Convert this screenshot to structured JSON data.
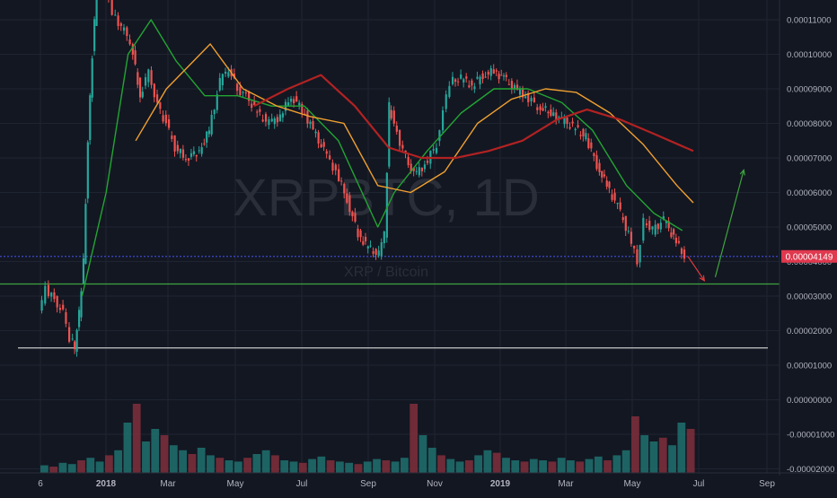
{
  "chart_data": {
    "type": "candlestick",
    "watermark": {
      "symbol": "XRPBTC, 1D",
      "subtitle": "XRP / Bitcoin"
    },
    "price_axis": {
      "labels": [
        "0.00011000",
        "0.00010000",
        "0.00009000",
        "0.00008000",
        "0.00007000",
        "0.00006000",
        "0.00005000",
        "0.00004000",
        "0.00003000",
        "0.00002000",
        "0.00001000",
        "0.00000000",
        "-0.00001000",
        "-0.00002000"
      ],
      "range": [
        -2e-05,
        0.000115
      ],
      "last_price_label": "0.00004149",
      "last_price": 4.149e-05
    },
    "time_axis": {
      "labels": [
        "6",
        "2018",
        "Mar",
        "May",
        "Jul",
        "Sep",
        "Nov",
        "2019",
        "Mar",
        "May",
        "Jul",
        "Sep"
      ]
    },
    "horizontal_lines": [
      {
        "name": "blue-support",
        "value": 4.15e-05,
        "color": "#3f48cc",
        "style": "dotted"
      },
      {
        "name": "green-support",
        "value": 3.35e-05,
        "color": "#3ea33e",
        "style": "solid"
      },
      {
        "name": "white-support",
        "value": 1.5e-05,
        "color": "#c8c8c8",
        "style": "solid"
      }
    ],
    "price_series": [
      [
        "2017-11-06",
        2.5e-05
      ],
      [
        "2017-11-12",
        3.2e-05
      ],
      [
        "2017-11-20",
        2.9e-05
      ],
      [
        "2017-11-28",
        2.5e-05
      ],
      [
        "2017-12-04",
        1.8e-05
      ],
      [
        "2017-12-08",
        1.5e-05
      ],
      [
        "2017-12-12",
        2.5e-05
      ],
      [
        "2017-12-16",
        4e-05
      ],
      [
        "2017-12-20",
        7.5e-05
      ],
      [
        "2017-12-24",
        0.0001
      ],
      [
        "2017-12-28",
        0.000118
      ],
      [
        "2018-01-02",
        0.00013
      ],
      [
        "2018-01-06",
        0.000122
      ],
      [
        "2018-01-12",
        0.000112
      ],
      [
        "2018-01-20",
        0.000108
      ],
      [
        "2018-01-28",
        0.000104
      ],
      [
        "2018-02-06",
        8.8e-05
      ],
      [
        "2018-02-14",
        9.5e-05
      ],
      [
        "2018-02-22",
        8.5e-05
      ],
      [
        "2018-03-02",
        8e-05
      ],
      [
        "2018-03-10",
        7.3e-05
      ],
      [
        "2018-03-20",
        7e-05
      ],
      [
        "2018-04-01",
        7.2e-05
      ],
      [
        "2018-04-10",
        7.8e-05
      ],
      [
        "2018-04-20",
        9.2e-05
      ],
      [
        "2018-04-28",
        9.6e-05
      ],
      [
        "2018-05-06",
        9e-05
      ],
      [
        "2018-05-14",
        8.8e-05
      ],
      [
        "2018-05-24",
        8.3e-05
      ],
      [
        "2018-06-04",
        8e-05
      ],
      [
        "2018-06-14",
        8.2e-05
      ],
      [
        "2018-06-24",
        8.8e-05
      ],
      [
        "2018-07-04",
        8.4e-05
      ],
      [
        "2018-07-14",
        7.8e-05
      ],
      [
        "2018-07-24",
        7.2e-05
      ],
      [
        "2018-08-04",
        6.6e-05
      ],
      [
        "2018-08-14",
        5.8e-05
      ],
      [
        "2018-08-24",
        4.8e-05
      ],
      [
        "2018-09-02",
        4.4e-05
      ],
      [
        "2018-09-12",
        4.2e-05
      ],
      [
        "2018-09-17",
        4.8e-05
      ],
      [
        "2018-09-21",
        8.5e-05
      ],
      [
        "2018-09-26",
        8e-05
      ],
      [
        "2018-10-04",
        7.2e-05
      ],
      [
        "2018-10-14",
        6.5e-05
      ],
      [
        "2018-10-24",
        6.8e-05
      ],
      [
        "2018-11-04",
        7.4e-05
      ],
      [
        "2018-11-10",
        8.4e-05
      ],
      [
        "2018-11-16",
        9.2e-05
      ],
      [
        "2018-11-26",
        9.3e-05
      ],
      [
        "2018-12-06",
        9.1e-05
      ],
      [
        "2018-12-16",
        9.4e-05
      ],
      [
        "2018-12-26",
        9.5e-05
      ],
      [
        "2019-01-04",
        9.3e-05
      ],
      [
        "2019-01-14",
        9e-05
      ],
      [
        "2019-01-24",
        8.8e-05
      ],
      [
        "2019-02-04",
        8.5e-05
      ],
      [
        "2019-02-16",
        8.3e-05
      ],
      [
        "2019-02-26",
        8.1e-05
      ],
      [
        "2019-03-08",
        7.9e-05
      ],
      [
        "2019-03-20",
        7.6e-05
      ],
      [
        "2019-03-30",
        6.8e-05
      ],
      [
        "2019-04-08",
        6.2e-05
      ],
      [
        "2019-04-18",
        5.6e-05
      ],
      [
        "2019-04-28",
        4.8e-05
      ],
      [
        "2019-05-06",
        4e-05
      ],
      [
        "2019-05-12",
        5.2e-05
      ],
      [
        "2019-05-20",
        4.9e-05
      ],
      [
        "2019-05-30",
        5.2e-05
      ],
      [
        "2019-06-08",
        4.7e-05
      ],
      [
        "2019-06-18",
        4.15e-05
      ]
    ],
    "moving_averages": [
      {
        "color": "#22a533",
        "points": [
          [
            "2017-12-14",
            3e-05
          ],
          [
            "2018-01-05",
            6e-05
          ],
          [
            "2018-01-25",
            0.0001
          ],
          [
            "2018-02-15",
            0.00011
          ],
          [
            "2018-03-10",
            9.8e-05
          ],
          [
            "2018-04-05",
            8.8e-05
          ],
          [
            "2018-05-05",
            8.8e-05
          ],
          [
            "2018-06-05",
            8.5e-05
          ],
          [
            "2018-07-05",
            8.5e-05
          ],
          [
            "2018-08-05",
            7.5e-05
          ],
          [
            "2018-09-10",
            5e-05
          ],
          [
            "2018-09-25",
            6e-05
          ],
          [
            "2018-10-25",
            7.2e-05
          ],
          [
            "2018-11-25",
            8.3e-05
          ],
          [
            "2018-12-25",
            9e-05
          ],
          [
            "2019-01-25",
            9e-05
          ],
          [
            "2019-02-25",
            8.6e-05
          ],
          [
            "2019-03-25",
            7.8e-05
          ],
          [
            "2019-04-25",
            6.2e-05
          ],
          [
            "2019-05-20",
            5.4e-05
          ],
          [
            "2019-06-15",
            4.9e-05
          ]
        ]
      },
      {
        "color": "#f0a030",
        "points": [
          [
            "2018-02-01",
            7.5e-05
          ],
          [
            "2018-03-01",
            9e-05
          ],
          [
            "2018-04-10",
            0.000103
          ],
          [
            "2018-05-10",
            9e-05
          ],
          [
            "2018-06-10",
            8.5e-05
          ],
          [
            "2018-07-10",
            8.2e-05
          ],
          [
            "2018-08-10",
            8e-05
          ],
          [
            "2018-09-10",
            6.2e-05
          ],
          [
            "2018-10-10",
            6e-05
          ],
          [
            "2018-11-10",
            6.6e-05
          ],
          [
            "2018-12-10",
            8e-05
          ],
          [
            "2019-01-10",
            8.7e-05
          ],
          [
            "2019-02-10",
            9e-05
          ],
          [
            "2019-03-10",
            8.9e-05
          ],
          [
            "2019-04-10",
            8.3e-05
          ],
          [
            "2019-05-10",
            7.4e-05
          ],
          [
            "2019-06-10",
            6.2e-05
          ],
          [
            "2019-06-25",
            5.7e-05
          ]
        ]
      },
      {
        "color": "#b22222",
        "points": [
          [
            "2018-05-20",
            8.5e-05
          ],
          [
            "2018-06-20",
            9e-05
          ],
          [
            "2018-07-20",
            9.4e-05
          ],
          [
            "2018-08-20",
            8.5e-05
          ],
          [
            "2018-09-20",
            7.3e-05
          ],
          [
            "2018-10-20",
            7e-05
          ],
          [
            "2018-11-20",
            7e-05
          ],
          [
            "2018-12-20",
            7.2e-05
          ],
          [
            "2019-01-20",
            7.5e-05
          ],
          [
            "2019-02-20",
            8.1e-05
          ],
          [
            "2019-03-20",
            8.4e-05
          ],
          [
            "2019-04-20",
            8.1e-05
          ],
          [
            "2019-05-20",
            7.7e-05
          ],
          [
            "2019-06-25",
            7.2e-05
          ]
        ]
      }
    ],
    "projection_arrows": [
      {
        "color": "#e03c3c",
        "from": [
          "2019-06-20",
          4.15e-05
        ],
        "to": [
          "2019-07-05",
          3.45e-05
        ]
      },
      {
        "color": "#3ea33e",
        "from": [
          "2019-07-15",
          3.55e-05
        ],
        "to": [
          "2019-08-10",
          6.65e-05
        ]
      }
    ],
    "volume": [
      6,
      5,
      8,
      7,
      10,
      12,
      9,
      14,
      18,
      40,
      55,
      25,
      35,
      30,
      22,
      18,
      15,
      20,
      14,
      12,
      10,
      9,
      12,
      15,
      18,
      14,
      10,
      9,
      8,
      11,
      13,
      10,
      9,
      8,
      7,
      9,
      11,
      10,
      9,
      12,
      55,
      30,
      20,
      14,
      11,
      9,
      10,
      14,
      18,
      16,
      12,
      10,
      9,
      11,
      10,
      9,
      12,
      10,
      9,
      11,
      13,
      10,
      14,
      18,
      45,
      30,
      25,
      28,
      22,
      40,
      35
    ]
  }
}
